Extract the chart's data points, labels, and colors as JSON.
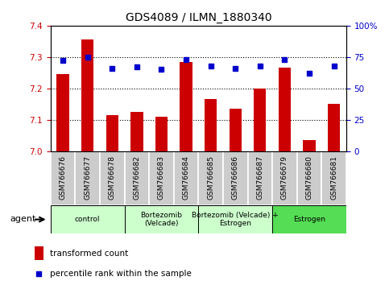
{
  "title": "GDS4089 / ILMN_1880340",
  "samples": [
    "GSM766676",
    "GSM766677",
    "GSM766678",
    "GSM766682",
    "GSM766683",
    "GSM766684",
    "GSM766685",
    "GSM766686",
    "GSM766687",
    "GSM766679",
    "GSM766680",
    "GSM766681"
  ],
  "transformed_count": [
    7.245,
    7.355,
    7.115,
    7.125,
    7.11,
    7.285,
    7.165,
    7.135,
    7.2,
    7.265,
    7.035,
    7.15
  ],
  "percentile_rank": [
    72,
    75,
    66,
    67,
    65,
    73,
    68,
    66,
    68,
    73,
    62,
    68
  ],
  "ylim_left": [
    7.0,
    7.4
  ],
  "ylim_right": [
    0,
    100
  ],
  "yticks_left": [
    7.0,
    7.1,
    7.2,
    7.3,
    7.4
  ],
  "yticks_right": [
    0,
    25,
    50,
    75,
    100
  ],
  "ytick_labels_right": [
    "0",
    "25",
    "50",
    "75",
    "100%"
  ],
  "bar_color": "#cc0000",
  "dot_color": "#0000cc",
  "groups": [
    {
      "label": "control",
      "start": 0,
      "end": 3,
      "color": "#ccffcc"
    },
    {
      "label": "Bortezomib\n(Velcade)",
      "start": 3,
      "end": 6,
      "color": "#ccffcc"
    },
    {
      "label": "Bortezomib (Velcade) +\nEstrogen",
      "start": 6,
      "end": 9,
      "color": "#ccffcc"
    },
    {
      "label": "Estrogen",
      "start": 9,
      "end": 12,
      "color": "#55dd55"
    }
  ],
  "agent_label": "agent",
  "legend_bar_label": "transformed count",
  "legend_dot_label": "percentile rank within the sample",
  "bg_color": "#ffffff",
  "plot_bg_color": "#ffffff",
  "tick_label_bg": "#cccccc",
  "title_fontsize": 10,
  "tick_fontsize": 7.5
}
